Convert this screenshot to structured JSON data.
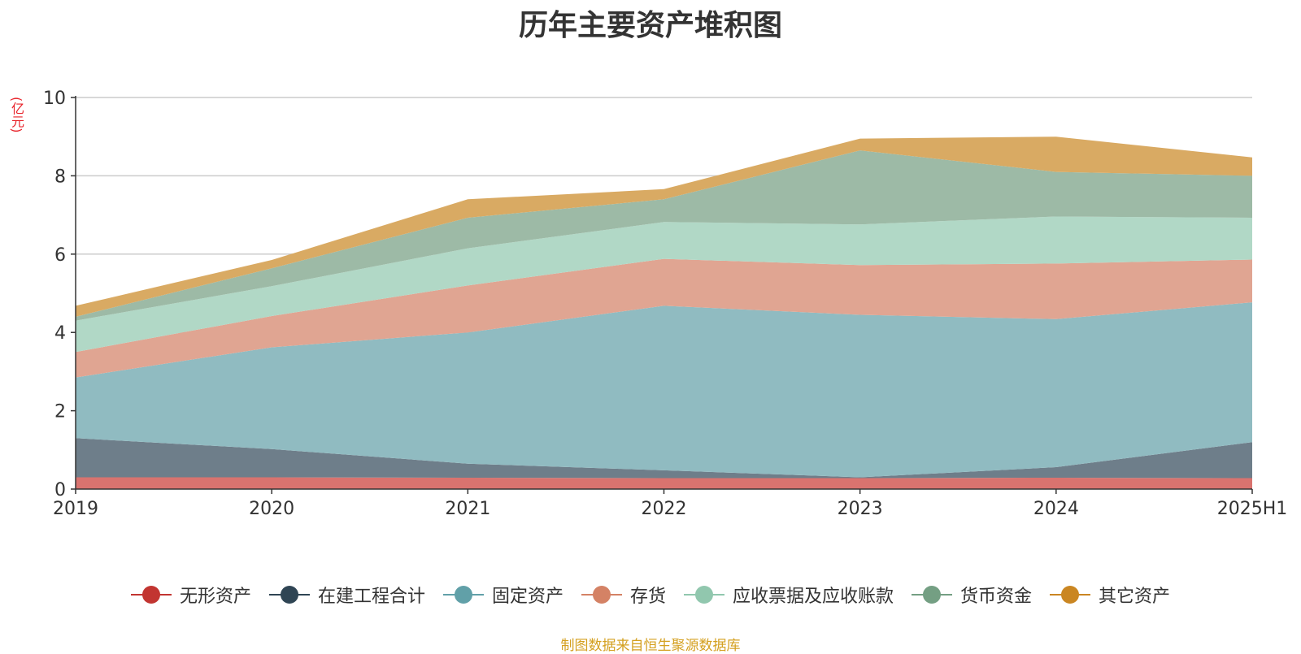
{
  "chart_data": {
    "type": "area",
    "title": "历年主要资产堆积图",
    "unit_label": "(亿元)",
    "categories": [
      "2019",
      "2020",
      "2021",
      "2022",
      "2023",
      "2024",
      "2025H1"
    ],
    "ylim": [
      0,
      10
    ],
    "yticks": [
      0,
      2,
      4,
      6,
      8,
      10
    ],
    "stacked": true,
    "grid": true,
    "legend_position": "bottom",
    "series": [
      {
        "name": "无形资产",
        "color": "#c23531",
        "fill": "#d9736f",
        "values": [
          0.3,
          0.3,
          0.29,
          0.28,
          0.28,
          0.29,
          0.28
        ]
      },
      {
        "name": "在建工程合计",
        "color": "#2f4554",
        "fill": "#6e7e8a",
        "values": [
          1.0,
          0.72,
          0.36,
          0.2,
          0.02,
          0.27,
          0.92
        ]
      },
      {
        "name": "固定资产",
        "color": "#61a0a8",
        "fill": "#90bbc1",
        "values": [
          1.55,
          2.6,
          3.35,
          4.2,
          4.15,
          3.78,
          3.57
        ]
      },
      {
        "name": "存货",
        "color": "#d48265",
        "fill": "#e0a592",
        "values": [
          0.65,
          0.8,
          1.2,
          1.2,
          1.27,
          1.42,
          1.09
        ]
      },
      {
        "name": "应收票据及应收账款",
        "color": "#91c7ae",
        "fill": "#b1d8c6",
        "values": [
          0.8,
          0.76,
          0.95,
          0.94,
          1.04,
          1.2,
          1.07
        ]
      },
      {
        "name": "货币资金",
        "color": "#749f83",
        "fill": "#9dbaa6",
        "values": [
          0.1,
          0.46,
          0.78,
          0.58,
          1.89,
          1.14,
          1.07
        ]
      },
      {
        "name": "其它资产",
        "color": "#ca8622",
        "fill": "#d9aa63",
        "values": [
          0.28,
          0.21,
          0.47,
          0.26,
          0.3,
          0.9,
          0.47
        ]
      }
    ]
  },
  "source_note": "制图数据来自恒生聚源数据库"
}
